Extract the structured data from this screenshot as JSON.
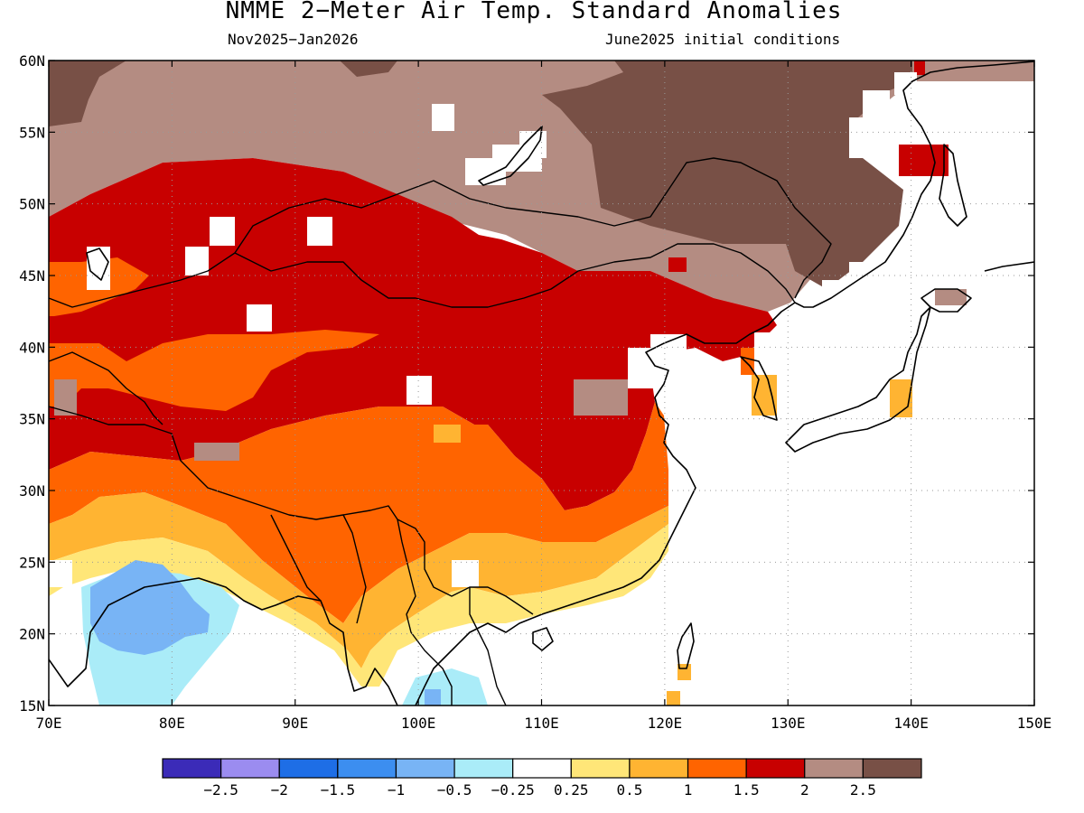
{
  "title": "NMME 2−Meter Air Temp. Standard Anomalies",
  "subtitle_left": "Nov2025−Jan2026",
  "subtitle_right": "June2025 initial conditions",
  "map": {
    "lon_range": [
      70,
      150
    ],
    "lat_range": [
      15,
      60
    ],
    "lat_labels": [
      "15N",
      "20N",
      "25N",
      "30N",
      "35N",
      "40N",
      "45N",
      "50N",
      "55N",
      "60N"
    ],
    "lon_labels": [
      "70E",
      "80E",
      "90E",
      "100E",
      "110E",
      "120E",
      "130E",
      "140E",
      "150E"
    ]
  },
  "colorbar": {
    "colors": [
      "#3b2bb8",
      "#9b8cf0",
      "#1e6ee6",
      "#3c8ef0",
      "#78b4f5",
      "#aaecf8",
      "#ffffff",
      "#ffe678",
      "#ffb432",
      "#ff6400",
      "#c80000",
      "#b48c82",
      "#785046"
    ],
    "labels": [
      "−2.5",
      "−2",
      "−1.5",
      "−1",
      "−0.5",
      "−0.25",
      "0.25",
      "0.5",
      "1",
      "1.5",
      "2",
      "2.5"
    ]
  },
  "colors": {
    "brown_dark": "#785046",
    "brown_light": "#b48c82",
    "red": "#c80000",
    "orange": "#ff6400",
    "gold": "#ffb432",
    "yellow": "#ffe678",
    "cyan": "#aaecf8",
    "blue": "#78b4f5"
  }
}
